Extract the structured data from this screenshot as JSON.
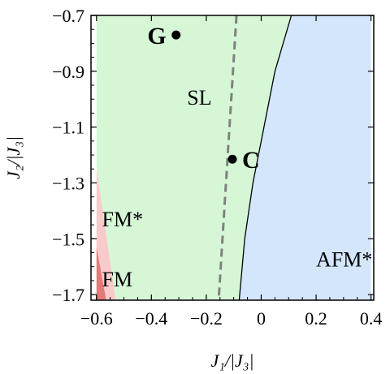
{
  "chart_data": {
    "type": "phase-diagram",
    "xlabel": "J₁/|J₃|",
    "ylabel": "J₂/|J₃|",
    "xlim": [
      -0.62,
      0.41
    ],
    "ylim": [
      -1.72,
      -0.7
    ],
    "xticks": [
      -0.6,
      -0.4,
      -0.2,
      0,
      0.2,
      0.4
    ],
    "xtick_labels": [
      "−0.6",
      "−0.4",
      "−0.2",
      "0",
      "0.2",
      "0.4"
    ],
    "yticks": [
      -0.7,
      -0.9,
      -1.1,
      -1.3,
      -1.5,
      -1.7
    ],
    "ytick_labels": [
      "−0.7",
      "−0.9",
      "−1.1",
      "−1.3",
      "−1.5",
      "−1.7"
    ],
    "grid": false,
    "colors": {
      "SL": "#d6f7d6",
      "AFM": "#d4e6fb",
      "FM_star": "#f8caca",
      "FM": "#e57878",
      "dashed_line": "#808080",
      "boundary": "#000000"
    },
    "regions": [
      {
        "id": "sl",
        "label": "SL",
        "label_pos": [
          -0.27,
          -1.02
        ],
        "polygon": [
          [
            -0.6,
            -0.7
          ],
          [
            0.11,
            -0.7
          ],
          [
            0.05,
            -0.9
          ],
          [
            0.0,
            -1.15
          ],
          [
            -0.03,
            -1.3
          ],
          [
            -0.06,
            -1.5
          ],
          [
            -0.08,
            -1.72
          ],
          [
            -0.53,
            -1.72
          ],
          [
            -0.6,
            -1.25
          ]
        ]
      },
      {
        "id": "afm",
        "label": "AFM*",
        "label_pos": [
          0.2,
          -1.6
        ],
        "polygon": [
          [
            0.11,
            -0.7
          ],
          [
            0.4,
            -0.7
          ],
          [
            0.4,
            -1.72
          ],
          [
            -0.08,
            -1.72
          ],
          [
            -0.06,
            -1.5
          ],
          [
            -0.03,
            -1.3
          ],
          [
            0.0,
            -1.15
          ],
          [
            0.05,
            -0.9
          ]
        ]
      },
      {
        "id": "fm-star",
        "label": "FM*",
        "label_pos": [
          -0.58,
          -1.455
        ],
        "polygon": [
          [
            -0.6,
            -1.25
          ],
          [
            -0.53,
            -1.72
          ],
          [
            -0.6,
            -1.72
          ]
        ]
      },
      {
        "id": "fm",
        "label": "FM",
        "label_pos": [
          -0.58,
          -1.67
        ],
        "polygon": [
          [
            -0.6,
            -1.53
          ],
          [
            -0.565,
            -1.72
          ],
          [
            -0.6,
            -1.72
          ]
        ]
      }
    ],
    "boundary_line": [
      [
        0.11,
        -0.7
      ],
      [
        0.05,
        -0.9
      ],
      [
        0.0,
        -1.15
      ],
      [
        -0.03,
        -1.3
      ],
      [
        -0.06,
        -1.5
      ],
      [
        -0.08,
        -1.72
      ]
    ],
    "dashed_line": [
      [
        -0.09,
        -0.7
      ],
      [
        -0.155,
        -1.72
      ]
    ],
    "points": [
      {
        "label": "G",
        "x": -0.31,
        "y": -0.77,
        "label_side": "left"
      },
      {
        "label": "C",
        "x": -0.105,
        "y": -1.215,
        "label_side": "right"
      }
    ]
  }
}
